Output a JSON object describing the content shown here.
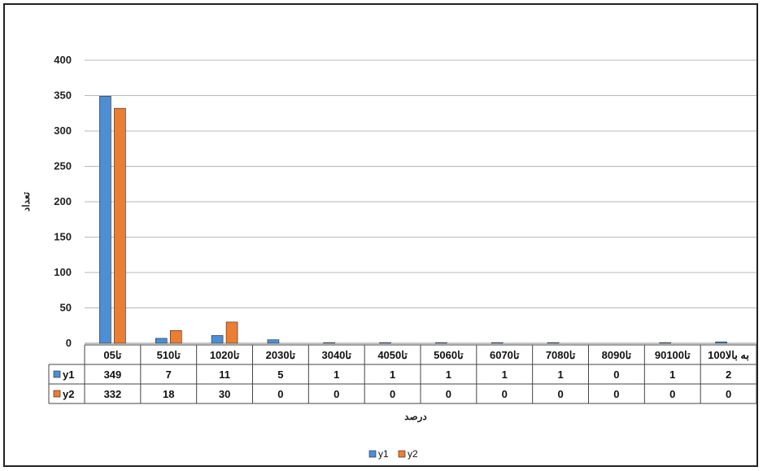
{
  "chart_data": {
    "type": "bar",
    "categories": [
      "0تا5",
      "5تا10",
      "10تا20",
      "20تا30",
      "30تا40",
      "40تا50",
      "50تا60",
      "60تا70",
      "70تا80",
      "80تا90",
      "90تا100",
      "100به بالا"
    ],
    "series": [
      {
        "name": "y1",
        "color": "#4a90d9",
        "values": [
          349,
          7,
          11,
          5,
          1,
          1,
          1,
          1,
          1,
          0,
          1,
          2
        ]
      },
      {
        "name": "y2",
        "color": "#ed7d31",
        "values": [
          332,
          18,
          30,
          0,
          0,
          0,
          0,
          0,
          0,
          0,
          0,
          0
        ]
      }
    ],
    "title": "",
    "xlabel": "درصد",
    "ylabel": "تعداد",
    "ylim": [
      0,
      400
    ],
    "yticks": [
      0,
      50,
      100,
      150,
      200,
      250,
      300,
      350,
      400
    ],
    "grid": true,
    "legend": "bottom-center",
    "data_table": true
  }
}
